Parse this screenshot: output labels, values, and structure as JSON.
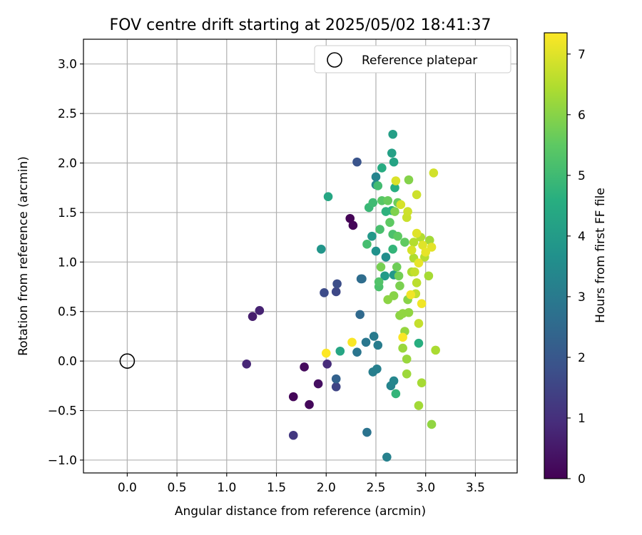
{
  "chart_data": {
    "type": "scatter",
    "title": "FOV centre drift starting at 2025/05/02 18:41:37",
    "xlabel": "Angular distance from reference (arcmin)",
    "ylabel": "Rotation from reference (arcmin)",
    "xlim": [
      -0.44,
      3.92
    ],
    "ylim": [
      -1.13,
      3.25
    ],
    "xticks": [
      0.0,
      0.5,
      1.0,
      1.5,
      2.0,
      2.5,
      3.0,
      3.5
    ],
    "xtick_labels": [
      "0.0",
      "0.5",
      "1.0",
      "1.5",
      "2.0",
      "2.5",
      "3.0",
      "3.5"
    ],
    "yticks": [
      -1.0,
      -0.5,
      0.0,
      0.5,
      1.0,
      1.5,
      2.0,
      2.5,
      3.0
    ],
    "ytick_labels": [
      "−1.0",
      "−0.5",
      "0.0",
      "0.5",
      "1.0",
      "1.5",
      "2.0",
      "2.5",
      "3.0"
    ],
    "grid": true,
    "legend": {
      "position": "top-right",
      "label": "Reference platepar",
      "marker": "open-circle"
    },
    "reference_point": {
      "x": 0.0,
      "y": 0.0,
      "label": "Reference platepar"
    },
    "colorbar": {
      "label": "Hours from first FF file",
      "min": 0,
      "max": 7.35,
      "ticks": [
        0,
        1,
        2,
        3,
        4,
        5,
        6,
        7
      ],
      "tick_labels": [
        "0",
        "1",
        "2",
        "3",
        "4",
        "5",
        "6",
        "7"
      ],
      "colormap": "viridis"
    },
    "points": [
      {
        "x": 2.24,
        "y": 1.44,
        "c": 0.05
      },
      {
        "x": 2.27,
        "y": 1.37,
        "c": 0.1
      },
      {
        "x": 1.67,
        "y": -0.36,
        "c": 0.1
      },
      {
        "x": 1.83,
        "y": -0.44,
        "c": 0.15
      },
      {
        "x": 1.78,
        "y": -0.06,
        "c": 0.2
      },
      {
        "x": 1.92,
        "y": -0.23,
        "c": 0.3
      },
      {
        "x": 1.26,
        "y": 0.45,
        "c": 0.6
      },
      {
        "x": 1.33,
        "y": 0.51,
        "c": 0.7
      },
      {
        "x": 1.2,
        "y": -0.03,
        "c": 0.8
      },
      {
        "x": 2.01,
        "y": -0.03,
        "c": 0.9
      },
      {
        "x": 1.67,
        "y": -0.75,
        "c": 1.2
      },
      {
        "x": 2.1,
        "y": -0.26,
        "c": 1.5
      },
      {
        "x": 2.1,
        "y": 0.7,
        "c": 1.6
      },
      {
        "x": 1.98,
        "y": 0.69,
        "c": 1.7
      },
      {
        "x": 2.11,
        "y": 0.78,
        "c": 1.75
      },
      {
        "x": 2.31,
        "y": 2.01,
        "c": 1.9
      },
      {
        "x": 2.1,
        "y": -0.18,
        "c": 2.3
      },
      {
        "x": 2.34,
        "y": 0.47,
        "c": 2.5
      },
      {
        "x": 2.35,
        "y": 0.83,
        "c": 2.55
      },
      {
        "x": 2.36,
        "y": 0.83,
        "c": 2.6
      },
      {
        "x": 2.41,
        "y": -0.72,
        "c": 2.8
      },
      {
        "x": 2.31,
        "y": 0.09,
        "c": 2.85
      },
      {
        "x": 2.4,
        "y": 0.19,
        "c": 2.9
      },
      {
        "x": 2.48,
        "y": 0.25,
        "c": 3.0
      },
      {
        "x": 2.52,
        "y": 0.16,
        "c": 3.05
      },
      {
        "x": 2.47,
        "y": -0.11,
        "c": 3.1
      },
      {
        "x": 2.51,
        "y": -0.08,
        "c": 3.15
      },
      {
        "x": 2.61,
        "y": -0.97,
        "c": 3.2
      },
      {
        "x": 2.65,
        "y": -0.25,
        "c": 3.3
      },
      {
        "x": 2.68,
        "y": -0.2,
        "c": 3.35
      },
      {
        "x": 2.5,
        "y": 1.86,
        "c": 3.3
      },
      {
        "x": 2.5,
        "y": 1.78,
        "c": 3.4
      },
      {
        "x": 2.6,
        "y": 1.05,
        "c": 3.6
      },
      {
        "x": 2.5,
        "y": 1.11,
        "c": 3.7
      },
      {
        "x": 1.95,
        "y": 1.13,
        "c": 3.8
      },
      {
        "x": 2.46,
        "y": 1.26,
        "c": 3.9
      },
      {
        "x": 2.68,
        "y": 0.87,
        "c": 3.9
      },
      {
        "x": 2.59,
        "y": 0.86,
        "c": 4.0
      },
      {
        "x": 2.67,
        "y": 2.29,
        "c": 4.1
      },
      {
        "x": 2.66,
        "y": 2.1,
        "c": 4.15
      },
      {
        "x": 2.68,
        "y": 2.01,
        "c": 4.25
      },
      {
        "x": 2.14,
        "y": 0.1,
        "c": 4.3
      },
      {
        "x": 2.02,
        "y": 1.66,
        "c": 4.35
      },
      {
        "x": 2.56,
        "y": 1.95,
        "c": 4.5
      },
      {
        "x": 2.69,
        "y": 1.75,
        "c": 4.6
      },
      {
        "x": 2.66,
        "y": 1.52,
        "c": 4.6
      },
      {
        "x": 2.6,
        "y": 1.51,
        "c": 4.7
      },
      {
        "x": 2.93,
        "y": 0.18,
        "c": 4.6
      },
      {
        "x": 2.7,
        "y": -0.33,
        "c": 4.8
      },
      {
        "x": 2.67,
        "y": 1.13,
        "c": 4.8
      },
      {
        "x": 2.43,
        "y": 1.55,
        "c": 4.9
      },
      {
        "x": 2.47,
        "y": 1.6,
        "c": 5.0
      },
      {
        "x": 2.52,
        "y": 1.77,
        "c": 5.05
      },
      {
        "x": 2.41,
        "y": 1.18,
        "c": 5.1
      },
      {
        "x": 2.54,
        "y": 1.33,
        "c": 5.15
      },
      {
        "x": 2.67,
        "y": 1.28,
        "c": 5.2
      },
      {
        "x": 2.53,
        "y": 0.75,
        "c": 5.2
      },
      {
        "x": 2.53,
        "y": 0.8,
        "c": 5.3
      },
      {
        "x": 2.56,
        "y": 1.62,
        "c": 5.4
      },
      {
        "x": 2.64,
        "y": 1.4,
        "c": 5.5
      },
      {
        "x": 2.72,
        "y": 1.26,
        "c": 5.5
      },
      {
        "x": 2.79,
        "y": 1.2,
        "c": 5.55
      },
      {
        "x": 2.62,
        "y": 1.62,
        "c": 5.6
      },
      {
        "x": 2.72,
        "y": 1.6,
        "c": 5.65
      },
      {
        "x": 2.71,
        "y": 0.95,
        "c": 5.7
      },
      {
        "x": 2.73,
        "y": 0.86,
        "c": 5.75
      },
      {
        "x": 2.55,
        "y": 0.95,
        "c": 5.8
      },
      {
        "x": 2.74,
        "y": 0.76,
        "c": 5.85
      },
      {
        "x": 2.69,
        "y": 1.51,
        "c": 5.9
      },
      {
        "x": 2.83,
        "y": 1.83,
        "c": 5.95
      },
      {
        "x": 2.68,
        "y": 0.66,
        "c": 6.0
      },
      {
        "x": 2.82,
        "y": 0.62,
        "c": 6.0
      },
      {
        "x": 2.62,
        "y": 0.62,
        "c": 6.05
      },
      {
        "x": 2.74,
        "y": 0.46,
        "c": 6.05
      },
      {
        "x": 2.77,
        "y": 0.48,
        "c": 6.1
      },
      {
        "x": 2.83,
        "y": 0.49,
        "c": 6.1
      },
      {
        "x": 2.79,
        "y": 0.3,
        "c": 6.15
      },
      {
        "x": 2.77,
        "y": 0.13,
        "c": 6.2
      },
      {
        "x": 2.81,
        "y": 0.02,
        "c": 6.2
      },
      {
        "x": 2.81,
        "y": -0.13,
        "c": 6.25
      },
      {
        "x": 2.93,
        "y": -0.45,
        "c": 6.3
      },
      {
        "x": 3.06,
        "y": -0.64,
        "c": 6.1
      },
      {
        "x": 2.96,
        "y": -0.22,
        "c": 6.35
      },
      {
        "x": 3.1,
        "y": 0.11,
        "c": 6.4
      },
      {
        "x": 2.86,
        "y": 0.9,
        "c": 6.4
      },
      {
        "x": 2.88,
        "y": 1.04,
        "c": 6.45
      },
      {
        "x": 2.88,
        "y": 1.2,
        "c": 6.5
      },
      {
        "x": 2.95,
        "y": 1.25,
        "c": 6.5
      },
      {
        "x": 3.04,
        "y": 1.22,
        "c": 6.3
      },
      {
        "x": 3.03,
        "y": 0.86,
        "c": 6.35
      },
      {
        "x": 2.99,
        "y": 1.05,
        "c": 6.55
      },
      {
        "x": 2.91,
        "y": 0.79,
        "c": 6.6
      },
      {
        "x": 2.9,
        "y": 0.68,
        "c": 6.65
      },
      {
        "x": 2.89,
        "y": 0.9,
        "c": 6.7
      },
      {
        "x": 2.93,
        "y": 0.38,
        "c": 6.7
      },
      {
        "x": 2.81,
        "y": 1.45,
        "c": 6.75
      },
      {
        "x": 2.82,
        "y": 1.51,
        "c": 6.8
      },
      {
        "x": 2.91,
        "y": 1.68,
        "c": 6.8
      },
      {
        "x": 3.08,
        "y": 1.9,
        "c": 6.85
      },
      {
        "x": 2.75,
        "y": 1.58,
        "c": 6.9
      },
      {
        "x": 2.7,
        "y": 1.82,
        "c": 6.95
      },
      {
        "x": 2.86,
        "y": 1.12,
        "c": 6.9
      },
      {
        "x": 2.91,
        "y": 1.29,
        "c": 7.0
      },
      {
        "x": 2.97,
        "y": 1.17,
        "c": 7.0
      },
      {
        "x": 3.06,
        "y": 1.15,
        "c": 7.05
      },
      {
        "x": 3.0,
        "y": 1.1,
        "c": 7.1
      },
      {
        "x": 2.93,
        "y": 0.99,
        "c": 7.1
      },
      {
        "x": 2.96,
        "y": 0.58,
        "c": 7.2
      },
      {
        "x": 2.85,
        "y": 0.67,
        "c": 7.2
      },
      {
        "x": 2.77,
        "y": 0.24,
        "c": 7.3
      },
      {
        "x": 2.26,
        "y": 0.19,
        "c": 7.3
      },
      {
        "x": 2.0,
        "y": 0.08,
        "c": 7.35
      }
    ]
  }
}
